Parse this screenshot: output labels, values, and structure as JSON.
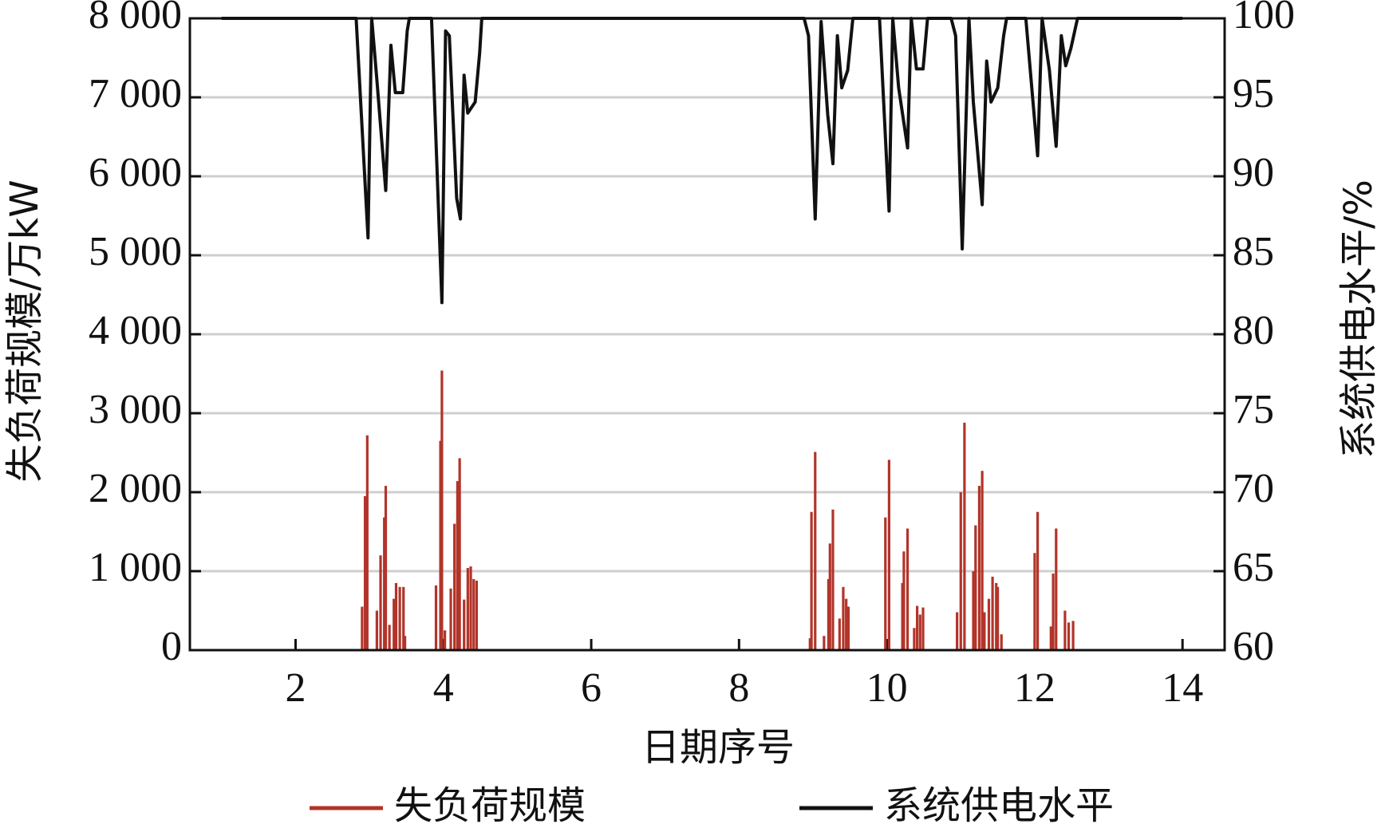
{
  "chart_data": {
    "type": "combo",
    "xlabel": "日期序号",
    "ylabel": "失负荷规模/万kW",
    "y2label": "系统供电水平/%",
    "xlim": [
      0.57,
      14.57
    ],
    "xticks": [
      2,
      4,
      6,
      8,
      10,
      12,
      14
    ],
    "ylim": [
      0,
      8000
    ],
    "yticks": [
      0,
      {
        "value": 1000,
        "label": "1 000"
      },
      {
        "value": 2000,
        "label": "2 000"
      },
      {
        "value": 3000,
        "label": "3 000"
      },
      {
        "value": 4000,
        "label": "4 000"
      },
      {
        "value": 5000,
        "label": "5 000"
      },
      {
        "value": 6000,
        "label": "6 000"
      },
      {
        "value": 7000,
        "label": "7 000"
      },
      {
        "value": 8000,
        "label": "8 000"
      }
    ],
    "y2lim": [
      60,
      100
    ],
    "y2ticks": [
      60,
      65,
      70,
      75,
      80,
      85,
      90,
      95,
      100
    ],
    "grid": true,
    "legend": "bottom",
    "series": [
      {
        "name": "失负荷规模",
        "color": "#b2342a",
        "type": "bar",
        "x": [
          2.9,
          2.94,
          2.97,
          3.1,
          3.15,
          3.2,
          3.22,
          3.27,
          3.33,
          3.36,
          3.41,
          3.46,
          3.48,
          3.9,
          3.96,
          3.98,
          4.02,
          4.1,
          4.15,
          4.19,
          4.22,
          4.28,
          4.33,
          4.37,
          4.41,
          4.45,
          8.96,
          8.98,
          9.03,
          9.15,
          9.21,
          9.23,
          9.27,
          9.36,
          9.41,
          9.45,
          9.48,
          9.98,
          10.03,
          10.21,
          10.23,
          10.28,
          10.37,
          10.41,
          10.45,
          10.49,
          10.95,
          11.0,
          11.05,
          11.17,
          11.2,
          11.25,
          11.29,
          11.32,
          11.38,
          11.43,
          11.48,
          11.5,
          11.55,
          12.0,
          12.04,
          12.22,
          12.25,
          12.29,
          12.41,
          12.46,
          12.52
        ],
        "values": [
          550,
          1950,
          2720,
          500,
          1200,
          1680,
          2080,
          320,
          650,
          850,
          800,
          800,
          180,
          820,
          2650,
          3540,
          250,
          780,
          1600,
          2140,
          2430,
          640,
          1040,
          1060,
          900,
          880,
          150,
          1750,
          2510,
          180,
          900,
          1350,
          1780,
          400,
          800,
          650,
          550,
          1680,
          2410,
          850,
          1250,
          1540,
          280,
          560,
          450,
          540,
          480,
          2000,
          2880,
          1000,
          1580,
          2080,
          2270,
          480,
          650,
          930,
          850,
          800,
          200,
          1230,
          1750,
          300,
          970,
          1540,
          500,
          350,
          370
        ]
      },
      {
        "name": "系统供电水平",
        "color": "#111111",
        "type": "line",
        "axis": "y2",
        "x": [
          1,
          2.82,
          2.98,
          3.03,
          3.1,
          3.22,
          3.29,
          3.35,
          3.45,
          3.51,
          3.54,
          3.84,
          3.98,
          4.03,
          4.08,
          4.18,
          4.23,
          4.28,
          4.33,
          4.43,
          4.49,
          4.52,
          8.88,
          8.94,
          9.03,
          9.11,
          9.2,
          9.27,
          9.33,
          9.39,
          9.47,
          9.54,
          9.9,
          10.03,
          10.08,
          10.16,
          10.28,
          10.33,
          10.4,
          10.49,
          10.55,
          10.87,
          10.93,
          11.02,
          11.11,
          11.17,
          11.29,
          11.35,
          11.41,
          11.5,
          11.58,
          11.62,
          11.88,
          12.04,
          12.1,
          12.2,
          12.29,
          12.36,
          12.42,
          12.49,
          12.58,
          14
        ],
        "values": [
          100,
          100,
          86.1,
          100,
          96.1,
          89.1,
          98.3,
          95.3,
          95.3,
          99.2,
          100,
          100,
          82.0,
          99.2,
          98.9,
          88.6,
          87.3,
          96.4,
          94.0,
          94.7,
          97.8,
          100,
          100,
          98.9,
          87.3,
          99.8,
          93.9,
          90.8,
          98.9,
          95.6,
          96.7,
          100,
          100,
          87.8,
          100,
          95.6,
          91.8,
          100,
          96.8,
          96.8,
          100,
          100,
          98.9,
          85.4,
          100,
          94.7,
          88.2,
          97.3,
          94.7,
          95.6,
          98.9,
          100,
          100,
          91.3,
          100,
          96.7,
          91.9,
          98.9,
          97.0,
          98.1,
          100,
          100
        ]
      }
    ]
  }
}
